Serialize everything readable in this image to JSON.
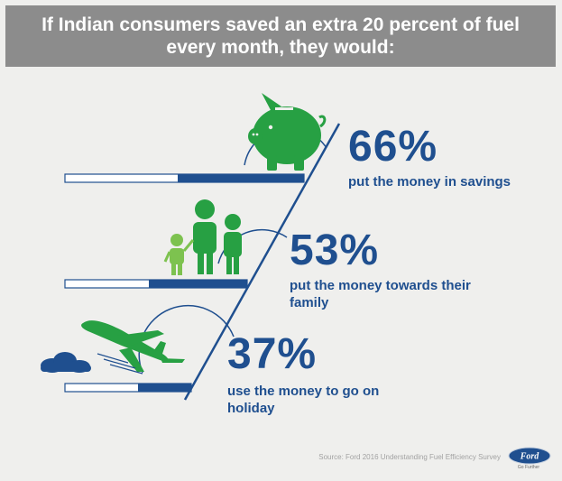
{
  "header": {
    "title": "If Indian consumers saved an extra 20 percent of fuel every month, they would:"
  },
  "stats": [
    {
      "percent": "66%",
      "description": "put the money in savings",
      "icon": "piggy-bank-icon",
      "level": 66
    },
    {
      "percent": "53%",
      "description": "put the money towards their family",
      "icon": "family-icon",
      "level": 53
    },
    {
      "percent": "37%",
      "description": "use the money to go on holiday",
      "icon": "airplane-icon",
      "level": 37
    }
  ],
  "footer": {
    "source": "Source: Ford 2016 Understanding Fuel Efficiency Survey",
    "brand": "Ford",
    "tagline": "Go Further"
  },
  "colors": {
    "background": "#efefed",
    "header_bg": "#8c8c8c",
    "text_blue": "#1f4f8f",
    "bar_blue": "#1f4f8f",
    "icon_green": "#27a043",
    "icon_light_green": "#7dc24f"
  }
}
